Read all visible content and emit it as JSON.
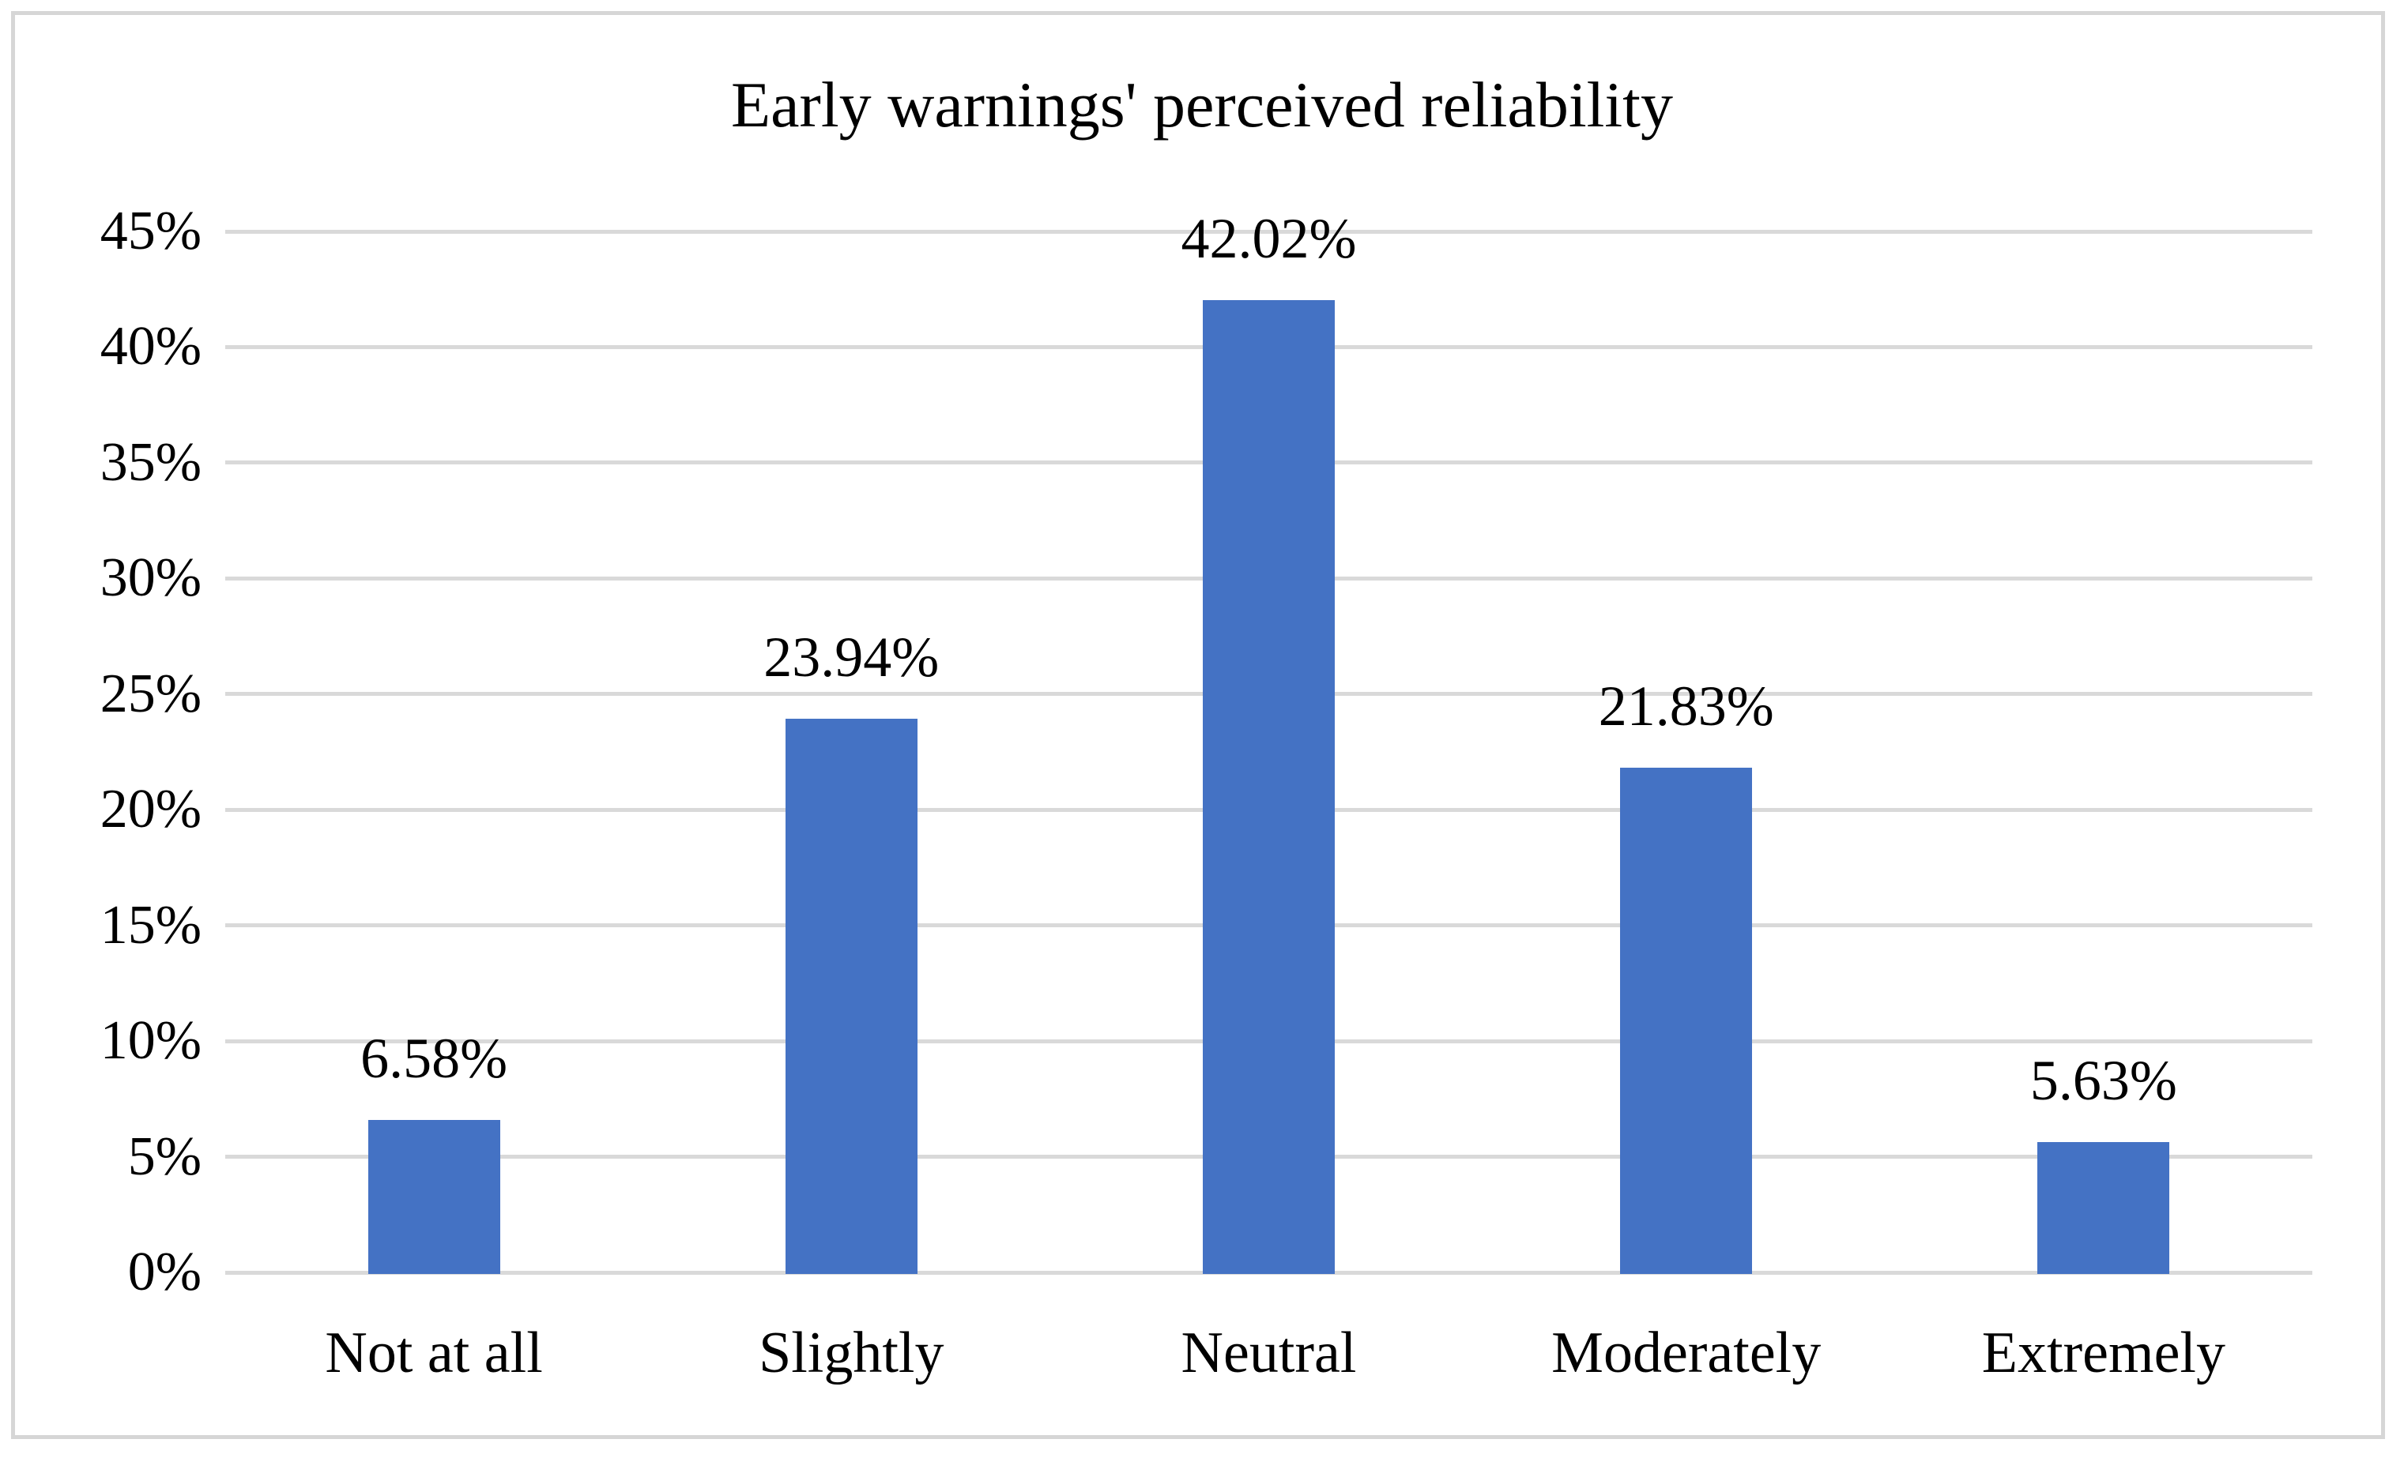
{
  "figure": {
    "border_color": "#d6d6d6",
    "background_color": "#ffffff",
    "text_color": "#000000"
  },
  "chart_data": {
    "type": "bar",
    "title": "Early warnings' perceived reliability",
    "categories": [
      "Not at all",
      "Slightly",
      "Neutral",
      "Moderately",
      "Extremely"
    ],
    "values": [
      6.58,
      23.94,
      42.02,
      21.83,
      5.63
    ],
    "value_labels": [
      "6.58%",
      "23.94%",
      "42.02%",
      "21.83%",
      "5.63%"
    ],
    "y_tick_labels": [
      "0%",
      "5%",
      "10%",
      "15%",
      "20%",
      "25%",
      "30%",
      "35%",
      "40%",
      "45%"
    ],
    "y_tick_values": [
      0,
      5,
      10,
      15,
      20,
      25,
      30,
      35,
      40,
      45
    ],
    "ylim": [
      0,
      45
    ],
    "xlabel": "",
    "ylabel": "",
    "grid": "horizontal",
    "gridline_color": "#d9d9d9",
    "bar_color": "#4472c4",
    "legend": "none"
  }
}
